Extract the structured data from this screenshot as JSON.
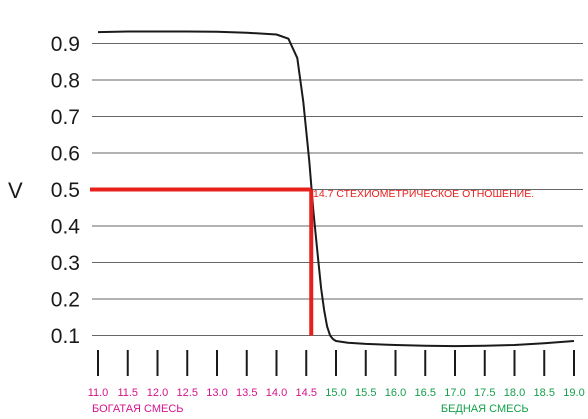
{
  "chart_data": {
    "type": "line",
    "title": "",
    "ylabel": "V",
    "xlabel": "",
    "ylim": [
      0.05,
      1.0
    ],
    "xlim": [
      11.0,
      19.0
    ],
    "grid": true,
    "y_ticks": [
      0.1,
      0.2,
      0.3,
      0.4,
      0.5,
      0.6,
      0.7,
      0.8,
      0.9
    ],
    "y_tick_labels": [
      "0.1",
      "0.2",
      "0.3",
      "0.4",
      "0.5",
      "0.6",
      "0.7",
      "0.8",
      "0.9"
    ],
    "x_ticks": [
      11.0,
      11.5,
      12.0,
      12.5,
      13.0,
      13.5,
      14.0,
      14.5,
      15.0,
      15.5,
      16.0,
      16.5,
      17.0,
      17.5,
      18.0,
      18.5,
      19.0
    ],
    "x_tick_labels": [
      "11.0",
      "11.5",
      "12.0",
      "12.5",
      "13.0",
      "13.5",
      "14.0",
      "14.5",
      "15.0",
      "15.5",
      "16.0",
      "16.5",
      "17.0",
      "17.5",
      "18.0",
      "18.5",
      "19.0"
    ],
    "series": [
      {
        "x": [
          11.0,
          11.5,
          12.0,
          12.5,
          13.0,
          13.5,
          14.0,
          14.2,
          14.35,
          14.45,
          14.55,
          14.62,
          14.7,
          14.75,
          14.8,
          14.85,
          14.9,
          14.95,
          15.0,
          15.2,
          15.5,
          16.0,
          16.5,
          17.0,
          17.5,
          18.0,
          18.5,
          19.0
        ],
        "y": [
          0.995,
          1.0,
          1.0,
          1.0,
          0.998,
          0.99,
          0.975,
          0.94,
          0.86,
          0.74,
          0.58,
          0.44,
          0.31,
          0.23,
          0.17,
          0.125,
          0.1,
          0.09,
          0.085,
          0.08,
          0.077,
          0.074,
          0.072,
          0.071,
          0.072,
          0.074,
          0.079,
          0.085
        ]
      }
    ],
    "stoichiometric": {
      "x": 14.7,
      "y": 0.5
    },
    "annotation": "14.7 СТЕХИОМЕТРИЧЕСКОЕ ОТНОШЕНИЕ.",
    "regions": [
      {
        "label": "БОГАТАЯ СМЕСЬ",
        "from": 11.0,
        "to": 14.5,
        "color": "#d4148c"
      },
      {
        "label": "БЕДНАЯ СМЕСЬ",
        "from": 15.0,
        "to": 19.0,
        "color": "#14a04a"
      }
    ],
    "colors": {
      "curve": "#1a1a1a",
      "grid": "#333333",
      "marker": "#e8201c",
      "rich": "#d4148c",
      "lean": "#14a04a",
      "stoich": "#14a04a"
    }
  }
}
